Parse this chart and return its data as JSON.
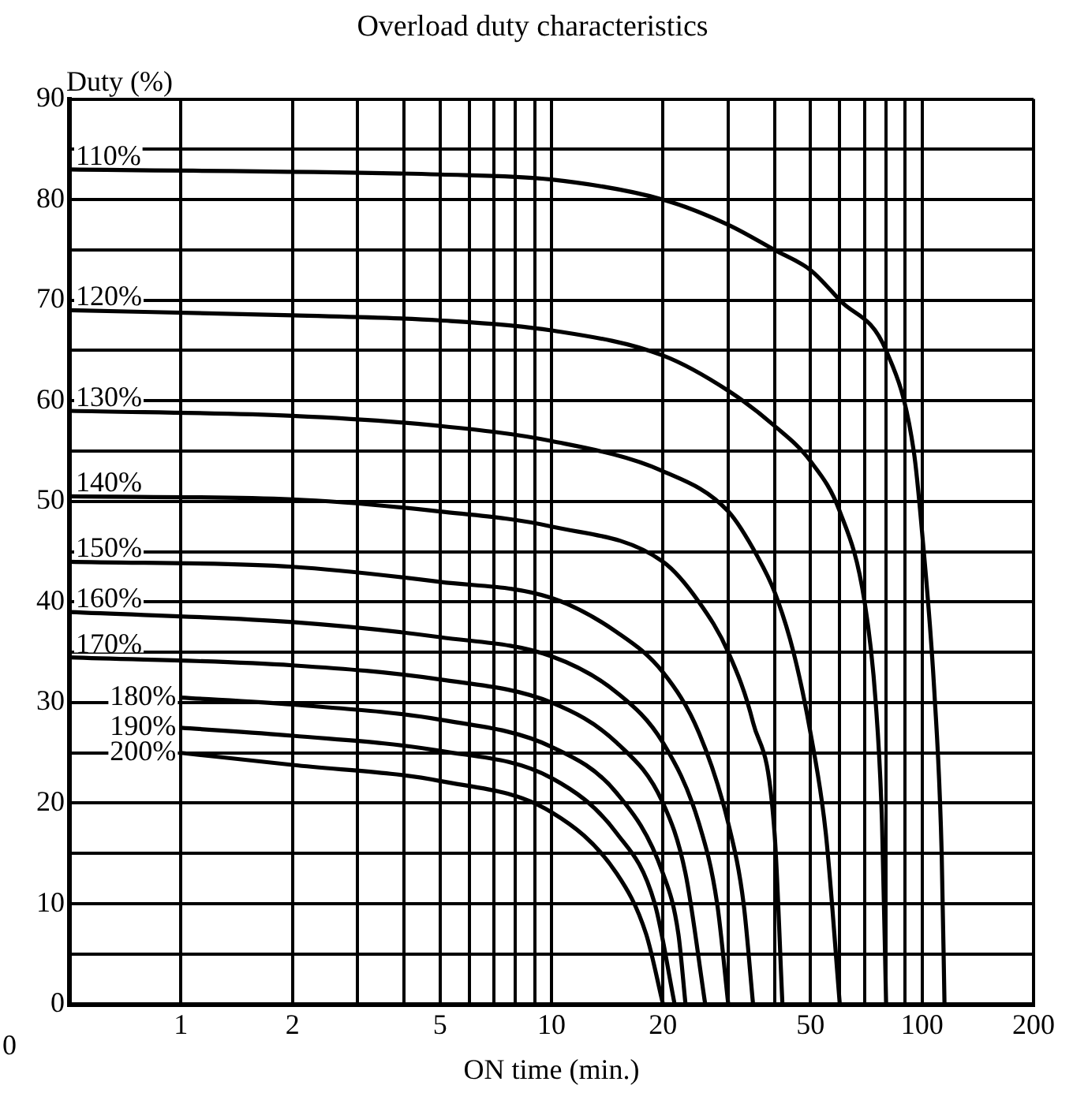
{
  "chart_data": {
    "type": "line",
    "title": "Overload duty characteristics",
    "xlabel": "ON time (min.)",
    "ylabel": "Duty (%)",
    "log": "x",
    "grid": true,
    "legend": false,
    "marker": "none",
    "line_style": "solid",
    "annotations": [
      "0"
    ],
    "xlim": [
      0.5,
      200
    ],
    "xticks": [
      1,
      2,
      {
        "value": 3,
        "label": null
      },
      {
        "value": 4,
        "label": null
      },
      5,
      {
        "value": 6,
        "label": null
      },
      {
        "value": 7,
        "label": null
      },
      {
        "value": 8,
        "label": null
      },
      {
        "value": 9,
        "label": null
      },
      10,
      20,
      {
        "value": 30,
        "label": null
      },
      {
        "value": 40,
        "label": null
      },
      50,
      {
        "value": 60,
        "label": null
      },
      {
        "value": 70,
        "label": null
      },
      {
        "value": 80,
        "label": null
      },
      {
        "value": 90,
        "label": null
      },
      100,
      200
    ],
    "ylim": [
      0,
      90
    ],
    "yticks": [
      0,
      {
        "value": 5,
        "label": null
      },
      10,
      {
        "value": 15,
        "label": null
      },
      20,
      {
        "value": 25,
        "label": null
      },
      30,
      {
        "value": 35,
        "label": null
      },
      40,
      {
        "value": 45,
        "label": null
      },
      50,
      {
        "value": 55,
        "label": null
      },
      60,
      {
        "value": 65,
        "label": null
      },
      70,
      {
        "value": 75,
        "label": null
      },
      80,
      {
        "value": 85,
        "label": null
      },
      90
    ],
    "series": [
      {
        "name": "110%",
        "color": "#000000",
        "x": [
          0.5,
          5,
          10,
          20,
          30,
          40,
          50,
          60,
          80,
          95,
          100,
          108,
          113,
          115
        ],
        "values": [
          83,
          82.5,
          82,
          80,
          77.5,
          75,
          73,
          70,
          65,
          55,
          47,
          31,
          15,
          0
        ]
      },
      {
        "name": "120%",
        "color": "#000000",
        "x": [
          0.5,
          2,
          5,
          10,
          20,
          30,
          40,
          50,
          60,
          70,
          75,
          78,
          80
        ],
        "values": [
          69,
          68.5,
          68,
          67,
          64.5,
          61,
          57.5,
          54,
          49,
          40,
          30,
          18,
          0
        ]
      },
      {
        "name": "130%",
        "color": "#000000",
        "x": [
          0.5,
          2,
          5,
          10,
          20,
          30,
          36,
          40,
          45,
          50,
          55,
          60
        ],
        "values": [
          59,
          58.5,
          57.5,
          56,
          53,
          49,
          44.5,
          41,
          35,
          27,
          17,
          0
        ]
      },
      {
        "name": "140%",
        "color": "#000000",
        "x": [
          0.5,
          2,
          5,
          10,
          20,
          25,
          30,
          35,
          40,
          42
        ],
        "values": [
          50.5,
          50.2,
          49,
          47.5,
          44,
          40,
          35,
          28,
          17,
          0
        ]
      },
      {
        "name": "150%",
        "color": "#000000",
        "x": [
          0.5,
          2,
          5,
          10,
          15,
          20,
          25,
          30,
          33,
          35
        ],
        "values": [
          44,
          43.5,
          42,
          40.4,
          37,
          33,
          27,
          18,
          10,
          0
        ]
      },
      {
        "name": "160%",
        "color": "#000000",
        "x": [
          0.5,
          2,
          5,
          10,
          15,
          20,
          25,
          28,
          30
        ],
        "values": [
          39,
          38,
          36.5,
          34.6,
          31,
          26,
          18,
          10,
          0
        ]
      },
      {
        "name": "170%",
        "color": "#000000",
        "x": [
          0.5,
          2,
          5,
          10,
          15,
          20,
          23,
          26
        ],
        "values": [
          34.5,
          33.7,
          32.3,
          30,
          26,
          20,
          13,
          0
        ]
      },
      {
        "name": "180%",
        "color": "#000000",
        "x": [
          1,
          2,
          5,
          10,
          15,
          20,
          22,
          23
        ],
        "values": [
          30.5,
          29.8,
          28.3,
          25.6,
          21,
          13,
          7,
          0
        ]
      },
      {
        "name": "190%",
        "color": "#000000",
        "x": [
          1,
          2,
          5,
          10,
          15,
          19,
          21.5
        ],
        "values": [
          27.5,
          26.7,
          25.2,
          22.5,
          17,
          10,
          0
        ]
      },
      {
        "name": "200%",
        "color": "#000000",
        "x": [
          1,
          2,
          5,
          10,
          15,
          18,
          20
        ],
        "values": [
          25,
          23.8,
          22.2,
          19.1,
          13,
          7,
          0
        ]
      }
    ]
  }
}
